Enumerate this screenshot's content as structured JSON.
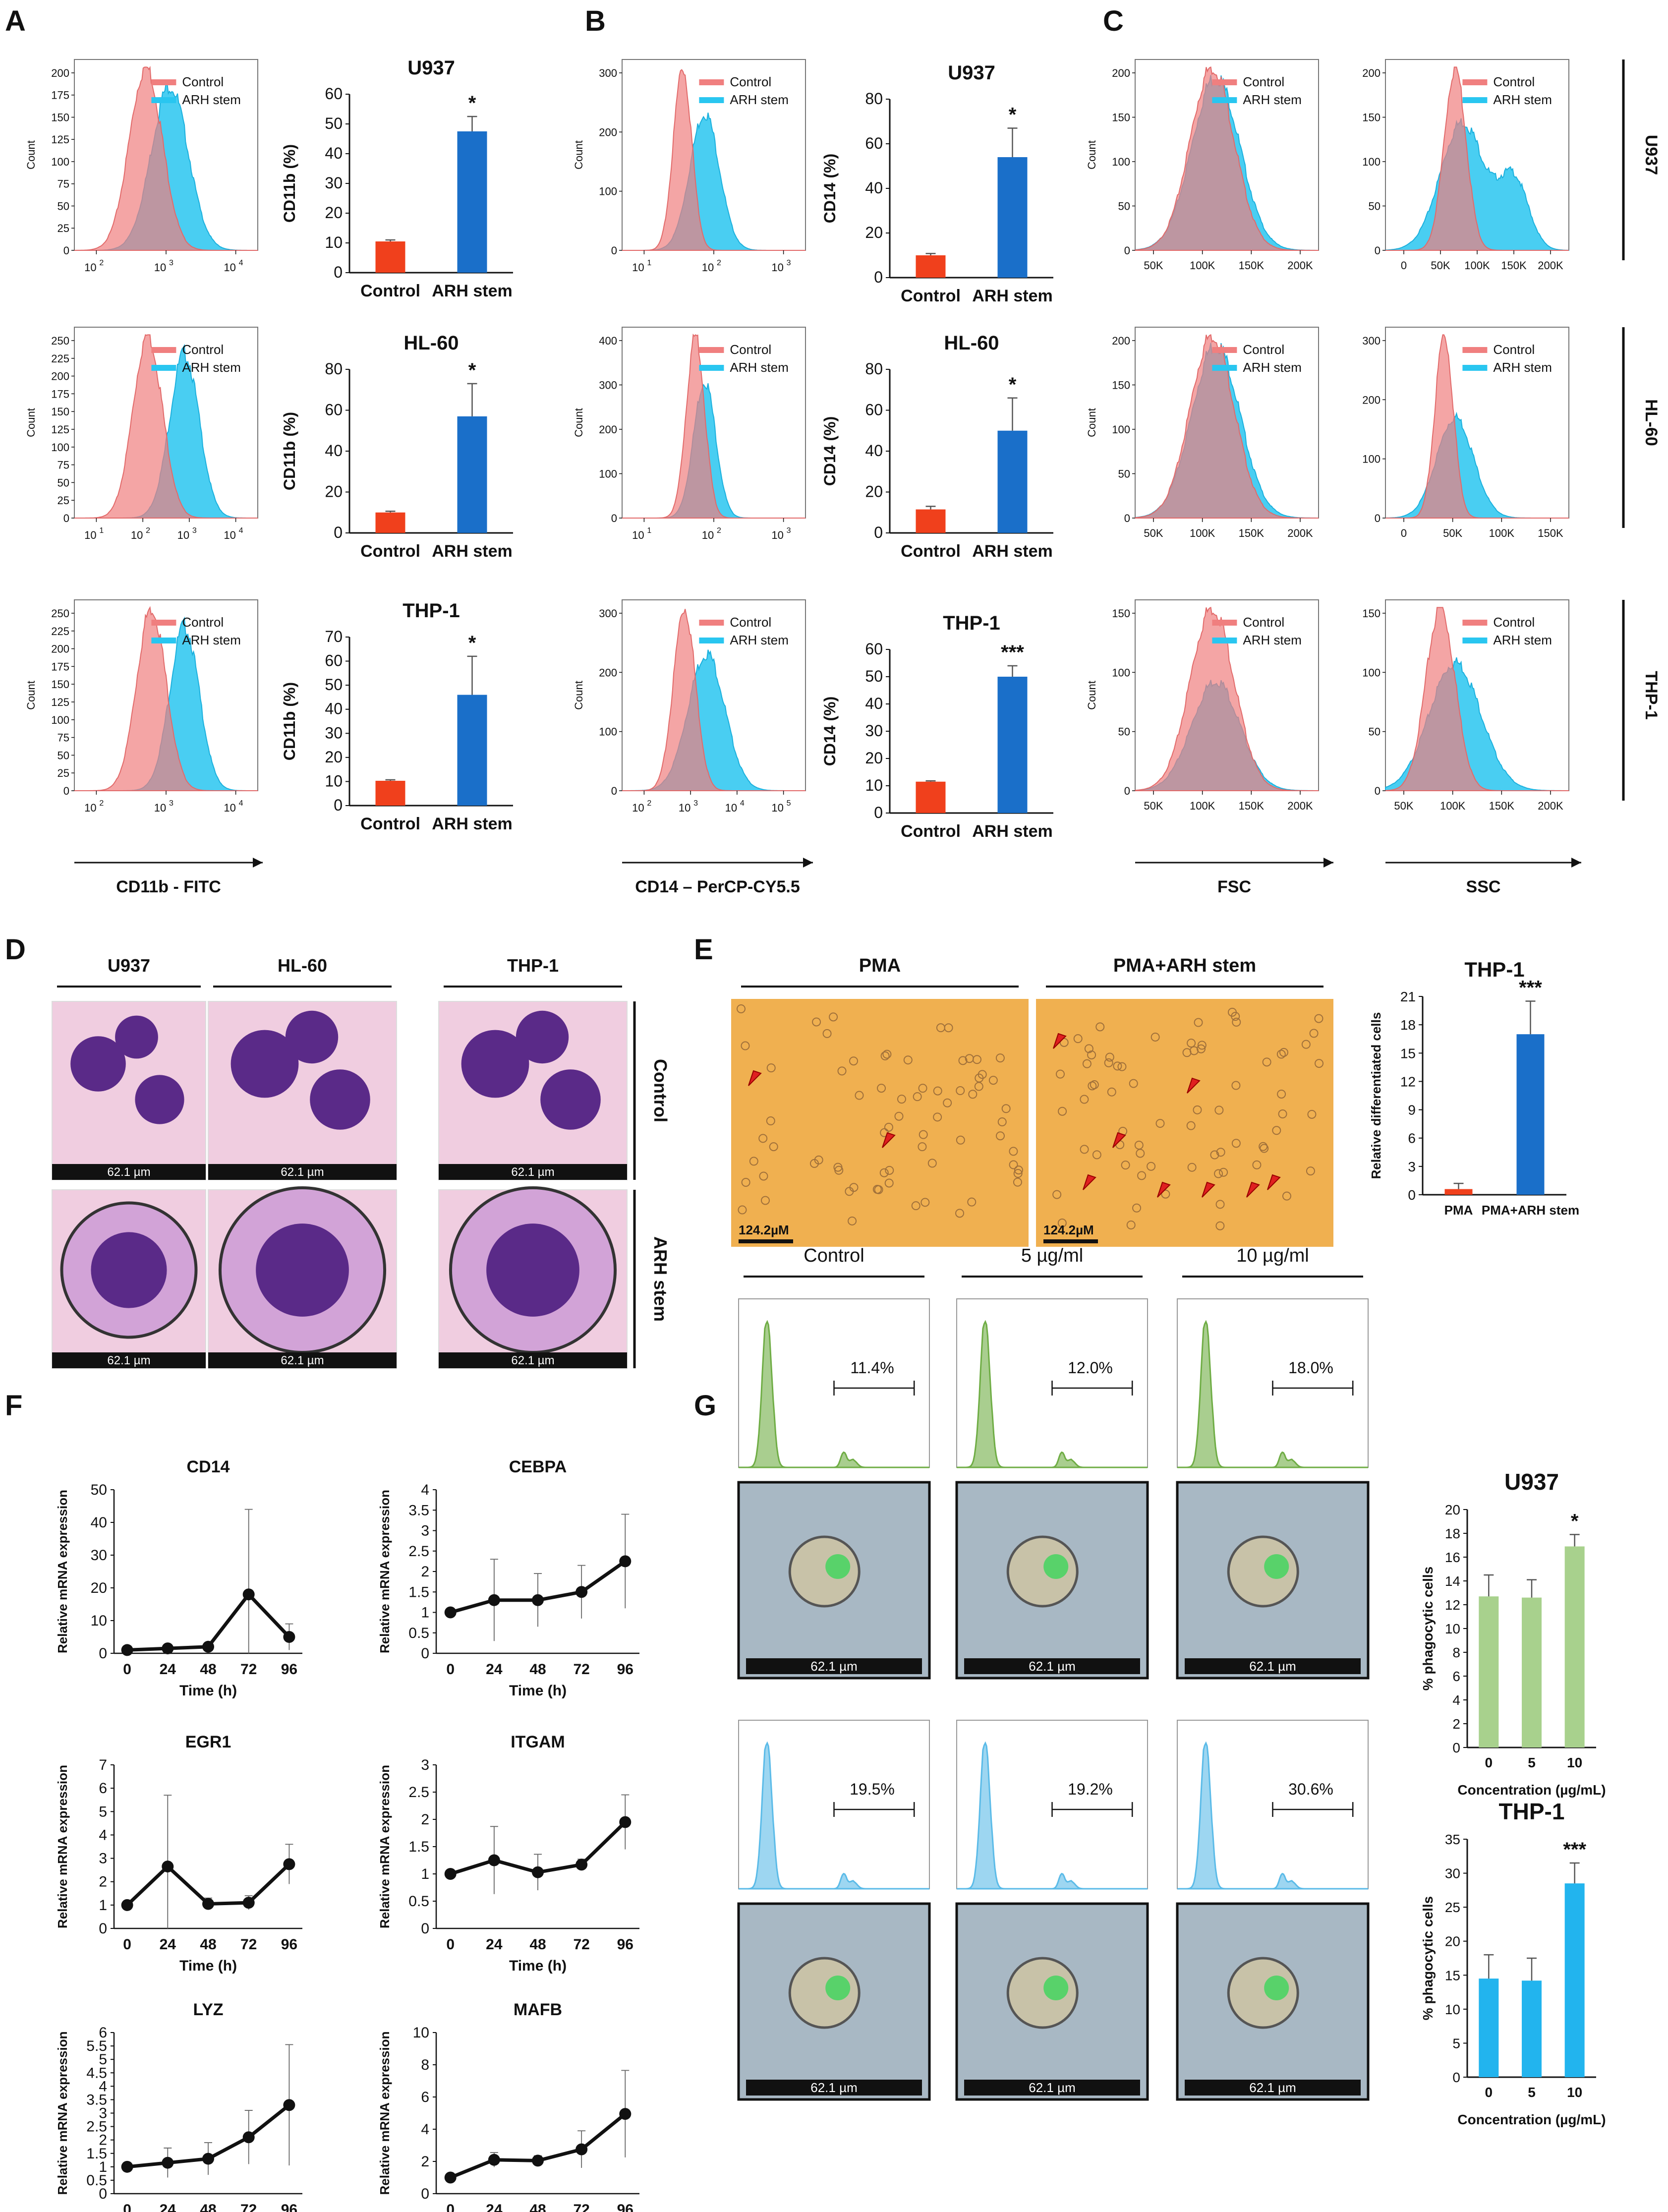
{
  "colors": {
    "control": "#f07f7f",
    "arh": "#29c6f0",
    "bar_control": "#f0401c",
    "bar_arh": "#1a6fc9",
    "green": "#6fad45",
    "green_bar": "#a8d18d",
    "blue_bar": "#22b4ee",
    "cyan_hist": "#5bbbe8"
  },
  "panel_letters": [
    "A",
    "B",
    "C",
    "D",
    "E",
    "F",
    "G"
  ],
  "flow": {
    "legend_control": "Control",
    "legend_arh": "ARH stem",
    "count_label": "Count",
    "xlabel_A": "CD11b - FITC",
    "xlabel_B": "CD14 – PerCP-CY5.5",
    "xlabel_FSC": "FSC",
    "xlabel_SSC": "SSC",
    "cell_lines": [
      "U937",
      "HL-60",
      "THP-1"
    ],
    "hist_yticks": {
      "A0": [
        "0",
        "25",
        "50",
        "75",
        "100",
        "125",
        "150",
        "175",
        "200"
      ],
      "A1": [
        "0",
        "25",
        "50",
        "75",
        "100",
        "125",
        "150",
        "175",
        "200",
        "225",
        "250"
      ],
      "A2": [
        "0",
        "25",
        "50",
        "75",
        "100",
        "125",
        "150",
        "175",
        "200",
        "225",
        "250"
      ],
      "B0": [
        "0",
        "100",
        "200",
        "300"
      ],
      "B1": [
        "0",
        "100",
        "200",
        "300",
        "400"
      ],
      "B2": [
        "0",
        "100",
        "200",
        "300"
      ],
      "C0": [
        "0",
        "50",
        "100",
        "150",
        "200"
      ],
      "C1": [
        "0",
        "50",
        "100",
        "150",
        "200"
      ],
      "C2": [
        "0",
        "50",
        "100",
        "150"
      ],
      "D0": [
        "0",
        "50",
        "100",
        "150",
        "200"
      ],
      "D1": [
        "0",
        "100",
        "200",
        "300"
      ],
      "D2": [
        "0",
        "50",
        "100",
        "150"
      ]
    },
    "xticks_log": {
      "A0": [
        "10",
        "2",
        "10",
        "3",
        "10",
        "4"
      ],
      "A1": [
        "10",
        "1",
        "10",
        "2",
        "10",
        "3",
        "10",
        "4"
      ],
      "A2": [
        "10",
        "2",
        "10",
        "3",
        "10",
        "4"
      ],
      "B0": [
        "10",
        "1",
        "10",
        "2",
        "10",
        "3"
      ],
      "B1": [
        "10",
        "1",
        "10",
        "2",
        "10",
        "3"
      ],
      "B2": [
        "10",
        "2",
        "10",
        "3",
        "10",
        "4",
        "10",
        "5"
      ]
    },
    "xticks_fsc": [
      "50K",
      "100K",
      "150K",
      "200K"
    ],
    "xticks_ssc0": [
      "0",
      "50K",
      "100K",
      "150K",
      "200K"
    ],
    "xticks_ssc1": [
      "0",
      "50K",
      "100K",
      "150K"
    ],
    "xticks_ssc2": [
      "50K",
      "100K",
      "150K",
      "200K"
    ]
  },
  "chart_data": [
    {
      "type": "bar",
      "panel": "A",
      "title": "U937",
      "categories": [
        "Control",
        "ARH stem"
      ],
      "values": [
        10.5,
        47.5
      ],
      "errors": [
        0.5,
        5
      ],
      "ylabel": "CD11b (%)",
      "ylim": [
        0,
        60
      ],
      "yticks": [
        "0",
        "10",
        "20",
        "30",
        "40",
        "50",
        "60"
      ],
      "sig": "*"
    },
    {
      "type": "bar",
      "panel": "A",
      "title": "HL-60",
      "categories": [
        "Control",
        "ARH stem"
      ],
      "values": [
        10,
        57
      ],
      "errors": [
        0.6,
        16
      ],
      "ylabel": "CD11b (%)",
      "ylim": [
        0,
        80
      ],
      "yticks": [
        "0",
        "20",
        "40",
        "60",
        "80"
      ],
      "sig": "*"
    },
    {
      "type": "bar",
      "panel": "A",
      "title": "THP-1",
      "categories": [
        "Control",
        "ARH stem"
      ],
      "values": [
        10.3,
        46
      ],
      "errors": [
        0.4,
        16
      ],
      "ylabel": "CD11b (%)",
      "ylim": [
        0,
        70
      ],
      "yticks": [
        "0",
        "10",
        "20",
        "30",
        "40",
        "50",
        "60",
        "70"
      ],
      "sig": "*"
    },
    {
      "type": "bar",
      "panel": "B",
      "title": "U937",
      "categories": [
        "Control",
        "ARH stem"
      ],
      "values": [
        10,
        54
      ],
      "errors": [
        0.8,
        13
      ],
      "ylabel": "CD14 (%)",
      "ylim": [
        0,
        80
      ],
      "yticks": [
        "0",
        "20",
        "40",
        "60",
        "80"
      ],
      "sig": "*"
    },
    {
      "type": "bar",
      "panel": "B",
      "title": "HL-60",
      "categories": [
        "Control",
        "ARH stem"
      ],
      "values": [
        11.5,
        50
      ],
      "errors": [
        1.5,
        16
      ],
      "ylabel": "CD14 (%)",
      "ylim": [
        0,
        80
      ],
      "yticks": [
        "0",
        "20",
        "40",
        "60",
        "80"
      ],
      "sig": "*"
    },
    {
      "type": "bar",
      "panel": "B",
      "title": "THP-1",
      "categories": [
        "Control",
        "ARH stem"
      ],
      "values": [
        11.5,
        50
      ],
      "errors": [
        0.3,
        4
      ],
      "ylabel": "CD14 (%)",
      "ylim": [
        0,
        60
      ],
      "yticks": [
        "0",
        "10",
        "20",
        "30",
        "40",
        "50",
        "60"
      ],
      "sig": "***"
    },
    {
      "type": "bar",
      "panel": "E",
      "title": "THP-1",
      "categories": [
        "PMA",
        "PMA+ARH stem"
      ],
      "values": [
        0.6,
        17
      ],
      "errors": [
        0.6,
        3.5
      ],
      "ylabel": "Relative differentiated cells",
      "ylim": [
        0,
        21
      ],
      "yticks": [
        "0",
        "3",
        "6",
        "9",
        "12",
        "15",
        "18",
        "21"
      ],
      "sig": "***"
    },
    {
      "type": "line",
      "panel": "F",
      "title": "CD14",
      "x": [
        0,
        24,
        48,
        72,
        96
      ],
      "values": [
        1,
        1.5,
        2,
        18,
        5
      ],
      "errors": [
        0.2,
        0.3,
        0.5,
        26,
        4
      ],
      "ylim": [
        0,
        50
      ],
      "yticks": [
        "0",
        "10",
        "20",
        "30",
        "40",
        "50"
      ]
    },
    {
      "type": "line",
      "panel": "F",
      "title": "CEBPA",
      "x": [
        0,
        24,
        48,
        72,
        96
      ],
      "values": [
        1,
        1.3,
        1.3,
        1.5,
        2.25
      ],
      "errors": [
        0.05,
        1.0,
        0.65,
        0.65,
        1.15
      ],
      "ylim": [
        0,
        4
      ],
      "yticks": [
        "0",
        "0.5",
        "1",
        "1.5",
        "2",
        "2.5",
        "3",
        "3.5",
        "4"
      ]
    },
    {
      "type": "line",
      "panel": "F",
      "title": "EGR1",
      "x": [
        0,
        24,
        48,
        72,
        96
      ],
      "values": [
        1,
        2.65,
        1.05,
        1.1,
        2.75
      ],
      "errors": [
        0.05,
        3.05,
        0.25,
        0.3,
        0.85
      ],
      "ylim": [
        0,
        7
      ],
      "yticks": [
        "0",
        "1",
        "2",
        "3",
        "4",
        "5",
        "6",
        "7"
      ]
    },
    {
      "type": "line",
      "panel": "F",
      "title": "ITGAM",
      "x": [
        0,
        24,
        48,
        72,
        96
      ],
      "values": [
        1,
        1.25,
        1.03,
        1.17,
        1.95
      ],
      "errors": [
        0.05,
        0.62,
        0.33,
        0.1,
        0.5
      ],
      "ylim": [
        0,
        3
      ],
      "yticks": [
        "0",
        "0.5",
        "1",
        "1.5",
        "2",
        "2.5",
        "3"
      ]
    },
    {
      "type": "line",
      "panel": "F",
      "title": "LYZ",
      "x": [
        0,
        24,
        48,
        72,
        96
      ],
      "values": [
        1,
        1.15,
        1.3,
        2.1,
        3.3
      ],
      "errors": [
        0.05,
        0.55,
        0.6,
        1.0,
        2.25
      ],
      "ylim": [
        0,
        6
      ],
      "yticks": [
        "0",
        "0.5",
        "1",
        "1.5",
        "2",
        "2.5",
        "3",
        "3.5",
        "4",
        "4.5",
        "5",
        "5.5",
        "6"
      ]
    },
    {
      "type": "line",
      "panel": "F",
      "title": "MAFB",
      "x": [
        0,
        24,
        48,
        72,
        96
      ],
      "values": [
        1,
        2.1,
        2.05,
        2.75,
        4.95
      ],
      "errors": [
        0.1,
        0.45,
        0.3,
        1.15,
        2.7
      ],
      "ylim": [
        0,
        10
      ],
      "yticks": [
        "0",
        "2",
        "4",
        "6",
        "8",
        "10"
      ]
    },
    {
      "type": "bar",
      "panel": "G",
      "title": "U937",
      "categories": [
        "0",
        "5",
        "10"
      ],
      "values": [
        12.7,
        12.6,
        16.9
      ],
      "errors": [
        1.8,
        1.5,
        1.0
      ],
      "ylabel": "% phagocytic cells",
      "xlabel": "Concentration (µg/mL)",
      "ylim": [
        0,
        20
      ],
      "yticks": [
        "0",
        "2",
        "4",
        "6",
        "8",
        "10",
        "12",
        "14",
        "16",
        "18",
        "20"
      ],
      "sig": "*"
    },
    {
      "type": "bar",
      "panel": "G",
      "title": "THP-1",
      "categories": [
        "0",
        "5",
        "10"
      ],
      "values": [
        14.5,
        14.2,
        28.5
      ],
      "errors": [
        3.5,
        3.3,
        3.0
      ],
      "ylabel": "% phagocytic cells",
      "xlabel": "Concentration (µg/mL)",
      "ylim": [
        0,
        35
      ],
      "yticks": [
        "0",
        "5",
        "10",
        "15",
        "20",
        "25",
        "30",
        "35"
      ],
      "sig": "***"
    }
  ],
  "panel_D": {
    "columns": [
      "U937",
      "HL-60",
      "THP-1"
    ],
    "rows": [
      "Control",
      "ARH stem"
    ],
    "scale": "62.1 µm"
  },
  "panel_E": {
    "columns": [
      "PMA",
      "PMA+ARH stem"
    ],
    "scale": "124.2µM"
  },
  "panel_F": {
    "ylabel": "Relative mRNA expression",
    "xlabel": "Time (h)",
    "xticks": [
      "0",
      "24",
      "48",
      "72",
      "96"
    ]
  },
  "panel_G": {
    "columns": [
      "Control",
      "5 µg/ml",
      "10 µg/ml"
    ],
    "pct_u937": [
      "11.4%",
      "12.0%",
      "18.0%"
    ],
    "pct_thp1": [
      "19.5%",
      "19.2%",
      "30.6%"
    ],
    "scale": "62.1 µm"
  }
}
